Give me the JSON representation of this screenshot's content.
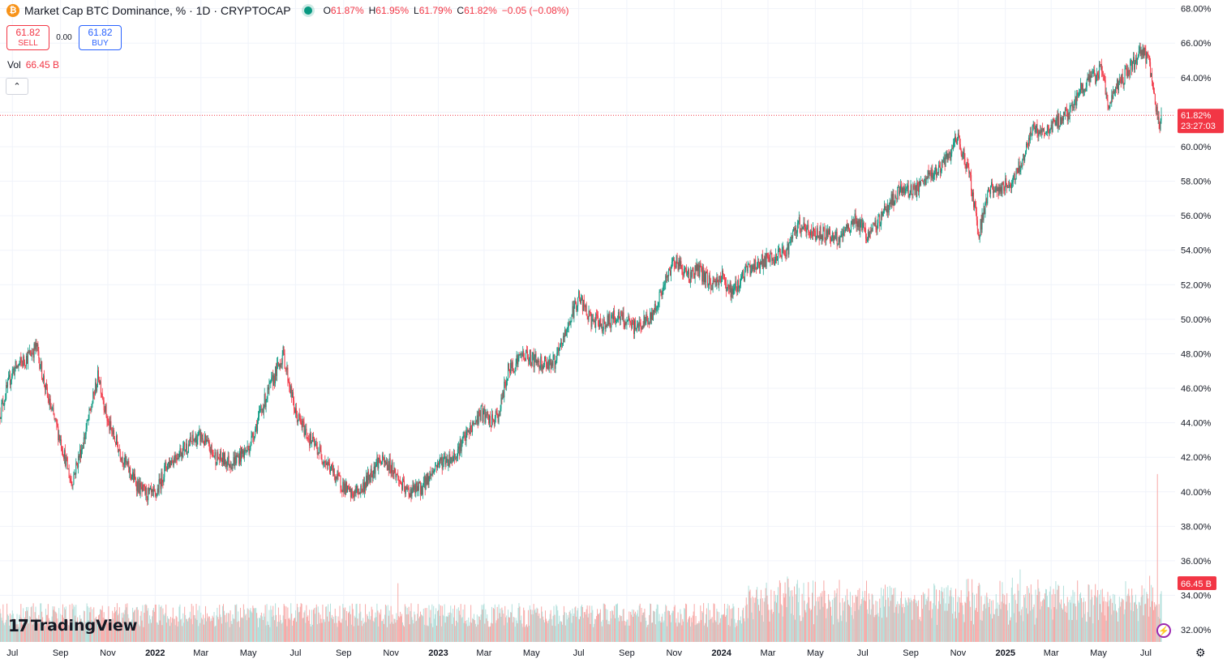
{
  "header": {
    "coin_icon": "bitcoin-icon",
    "title": "Market Cap BTC Dominance, % · 1D · CRYPTOCAP",
    "open_label": "O",
    "open": "61.87%",
    "high_label": "H",
    "high": "61.95%",
    "low_label": "L",
    "low": "61.79%",
    "close_label": "C",
    "close": "61.82%",
    "change": "−0.05 (−0.08%)"
  },
  "trade": {
    "sell_price": "61.82",
    "sell_label": "SELL",
    "spread": "0.00",
    "buy_price": "61.82",
    "buy_label": "BUY"
  },
  "volume": {
    "label": "Vol",
    "value": "66.45 B"
  },
  "collapse_icon": "chevron-up-icon",
  "price_tag": {
    "value": "61.82%",
    "countdown": "23:27:03"
  },
  "volume_tag": "66.45 B",
  "logo_text": "TradingView",
  "colors": {
    "up": "#089981",
    "down": "#f23645",
    "up_vol": "#b2dfdb",
    "down_vol": "#f7a9a7",
    "grid": "#f0f3fa"
  },
  "chart_data": {
    "type": "candlestick",
    "title": "Market Cap BTC Dominance, % · 1D · CRYPTOCAP",
    "y_ticks": [
      "68.00%",
      "66.00%",
      "64.00%",
      "62.00%",
      "60.00%",
      "58.00%",
      "56.00%",
      "54.00%",
      "52.00%",
      "50.00%",
      "48.00%",
      "46.00%",
      "44.00%",
      "42.00%",
      "40.00%",
      "38.00%",
      "36.00%",
      "34.00%",
      "32.00%"
    ],
    "ylim": [
      31.3,
      68.5
    ],
    "x_ticks": [
      "Jul",
      "Sep",
      "Nov",
      "2022",
      "Mar",
      "May",
      "Jul",
      "Sep",
      "Nov",
      "2023",
      "Mar",
      "May",
      "Jul",
      "Sep",
      "Nov",
      "2024",
      "Mar",
      "May",
      "Jul",
      "Sep",
      "Nov",
      "2025",
      "Mar",
      "May",
      "Jul"
    ],
    "x_range": [
      "2021-06-15",
      "2025-07-21"
    ],
    "last_price": 61.82,
    "price_path": [
      [
        "2021-06-15",
        44.6
      ],
      [
        "2021-07-01",
        47.0
      ],
      [
        "2021-07-20",
        47.8
      ],
      [
        "2021-08-01",
        48.4
      ],
      [
        "2021-08-15",
        45.5
      ],
      [
        "2021-09-01",
        43.0
      ],
      [
        "2021-09-15",
        40.5
      ],
      [
        "2021-10-01",
        43.0
      ],
      [
        "2021-10-20",
        46.8
      ],
      [
        "2021-11-01",
        44.0
      ],
      [
        "2021-11-20",
        42.0
      ],
      [
        "2021-12-01",
        41.0
      ],
      [
        "2021-12-15",
        40.0
      ],
      [
        "2022-01-01",
        39.7
      ],
      [
        "2022-01-15",
        41.5
      ],
      [
        "2022-02-01",
        42.3
      ],
      [
        "2022-02-20",
        43.0
      ],
      [
        "2022-03-01",
        43.2
      ],
      [
        "2022-03-20",
        42.0
      ],
      [
        "2022-04-10",
        41.7
      ],
      [
        "2022-05-01",
        42.5
      ],
      [
        "2022-05-20",
        45.0
      ],
      [
        "2022-06-15",
        48.0
      ],
      [
        "2022-07-01",
        44.5
      ],
      [
        "2022-07-20",
        43.0
      ],
      [
        "2022-08-01",
        42.3
      ],
      [
        "2022-08-20",
        41.0
      ],
      [
        "2022-09-10",
        39.8
      ],
      [
        "2022-09-25",
        40.2
      ],
      [
        "2022-10-15",
        41.8
      ],
      [
        "2022-11-01",
        41.5
      ],
      [
        "2022-11-20",
        40.0
      ],
      [
        "2022-12-10",
        40.2
      ],
      [
        "2023-01-01",
        41.7
      ],
      [
        "2023-01-20",
        42.0
      ],
      [
        "2023-02-10",
        43.5
      ],
      [
        "2023-02-25",
        44.6
      ],
      [
        "2023-03-10",
        44.0
      ],
      [
        "2023-03-20",
        44.5
      ],
      [
        "2023-04-01",
        47.0
      ],
      [
        "2023-04-20",
        48.0
      ],
      [
        "2023-05-10",
        47.5
      ],
      [
        "2023-06-01",
        47.5
      ],
      [
        "2023-06-20",
        50.0
      ],
      [
        "2023-07-01",
        51.3
      ],
      [
        "2023-07-15",
        50.0
      ],
      [
        "2023-08-01",
        49.7
      ],
      [
        "2023-08-20",
        50.2
      ],
      [
        "2023-09-10",
        49.5
      ],
      [
        "2023-10-01",
        50.0
      ],
      [
        "2023-10-20",
        52.0
      ],
      [
        "2023-11-01",
        53.5
      ],
      [
        "2023-11-20",
        52.5
      ],
      [
        "2023-12-01",
        52.9
      ],
      [
        "2023-12-20",
        52.0
      ],
      [
        "2024-01-01",
        52.5
      ],
      [
        "2024-01-15",
        51.5
      ],
      [
        "2024-02-01",
        52.8
      ],
      [
        "2024-02-20",
        53.3
      ],
      [
        "2024-03-10",
        53.5
      ],
      [
        "2024-03-25",
        54.0
      ],
      [
        "2024-04-10",
        55.5
      ],
      [
        "2024-04-25",
        55.0
      ],
      [
        "2024-05-15",
        55.0
      ],
      [
        "2024-06-01",
        54.5
      ],
      [
        "2024-06-20",
        55.8
      ],
      [
        "2024-07-10",
        54.8
      ],
      [
        "2024-08-01",
        56.5
      ],
      [
        "2024-08-20",
        57.5
      ],
      [
        "2024-09-10",
        57.5
      ],
      [
        "2024-09-25",
        58.3
      ],
      [
        "2024-10-15",
        59.0
      ],
      [
        "2024-11-01",
        60.5
      ],
      [
        "2024-11-15",
        58.5
      ],
      [
        "2024-11-28",
        55.0
      ],
      [
        "2024-12-10",
        57.5
      ],
      [
        "2024-12-25",
        57.5
      ],
      [
        "2025-01-10",
        58.0
      ],
      [
        "2025-01-25",
        59.5
      ],
      [
        "2025-02-05",
        61.0
      ],
      [
        "2025-02-20",
        60.8
      ],
      [
        "2025-03-10",
        61.5
      ],
      [
        "2025-03-25",
        62.0
      ],
      [
        "2025-04-10",
        63.5
      ],
      [
        "2025-04-25",
        64.0
      ],
      [
        "2025-05-05",
        64.5
      ],
      [
        "2025-05-15",
        62.3
      ],
      [
        "2025-05-25",
        63.5
      ],
      [
        "2025-06-10",
        64.5
      ],
      [
        "2025-06-25",
        65.5
      ],
      [
        "2025-07-05",
        65.0
      ],
      [
        "2025-07-12",
        63.0
      ],
      [
        "2025-07-18",
        61.0
      ],
      [
        "2025-07-21",
        61.82
      ]
    ],
    "volume_spikes": [
      [
        "2022-11-10",
        2.4
      ],
      [
        "2024-03-05",
        1.9
      ],
      [
        "2024-11-12",
        2.6
      ],
      [
        "2024-12-05",
        2.2
      ],
      [
        "2025-01-20",
        2.0
      ],
      [
        "2025-07-16",
        3.5
      ]
    ]
  }
}
